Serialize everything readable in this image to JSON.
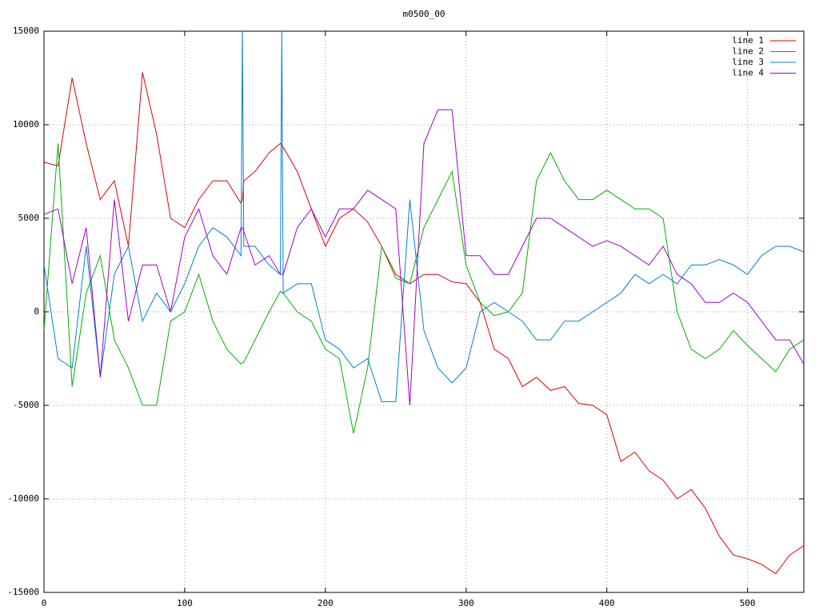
{
  "chart_data": {
    "type": "line",
    "title": "m0500_00",
    "x": [
      0,
      10,
      20,
      30,
      40,
      50,
      60,
      70,
      80,
      90,
      100,
      110,
      120,
      130,
      140,
      141,
      142,
      150,
      160,
      168,
      169,
      170,
      180,
      190,
      200,
      210,
      220,
      230,
      240,
      250,
      260,
      270,
      280,
      290,
      300,
      310,
      320,
      330,
      340,
      350,
      360,
      370,
      380,
      390,
      400,
      410,
      420,
      430,
      440,
      450,
      460,
      470,
      480,
      490,
      500,
      510,
      520,
      530,
      540
    ],
    "series": [
      {
        "name": "line 1",
        "color": "#e00000",
        "values": [
          8000,
          7800,
          12500,
          9000,
          6000,
          7000,
          3500,
          12800,
          9500,
          5000,
          4500,
          6000,
          7000,
          7000,
          5800,
          6000,
          7000,
          7500,
          8500,
          9000,
          8900,
          8800,
          7500,
          5500,
          3500,
          5000,
          5500,
          4800,
          3500,
          2000,
          1500,
          2000,
          2000,
          1600,
          1500,
          500,
          -2000,
          -2500,
          -4000,
          -3500,
          -4200,
          -4000,
          -4900,
          -5000,
          -5500,
          -8000,
          -7500,
          -8500,
          -9000,
          -10000,
          -9500,
          -10500,
          -12000,
          -13000,
          -13200,
          -13500,
          -14000,
          -13000,
          -12500
        ]
      },
      {
        "name": "line 2",
        "color": "#00b000",
        "values": [
          -1000,
          9000,
          -4000,
          1000,
          3000,
          -1500,
          -3000,
          -5000,
          -5000,
          -500,
          0,
          2000,
          -500,
          -2000,
          -2800,
          -2700,
          -2700,
          -1500,
          0,
          1100,
          1000,
          1000,
          0,
          -500,
          -2000,
          -2500,
          -6500,
          -3000,
          3500,
          1800,
          1500,
          4500,
          6000,
          7500,
          2500,
          500,
          -200,
          0,
          1000,
          7000,
          8500,
          7000,
          6000,
          6000,
          6500,
          6000,
          5500,
          5500,
          5000,
          0,
          -2000,
          -2500,
          -2000,
          -1000,
          -1800,
          -2500,
          -3200,
          -2000,
          -1500
        ]
      },
      {
        "name": "line 3",
        "color": "#0080d0",
        "values": [
          2500,
          -2500,
          -3000,
          3500,
          -3500,
          2000,
          3500,
          -500,
          1000,
          0,
          1500,
          3500,
          4500,
          4000,
          3000,
          15000,
          3500,
          3500,
          2500,
          2000,
          15000,
          1000,
          1500,
          1500,
          -1500,
          -2000,
          -3000,
          -2500,
          -4800,
          -4800,
          6000,
          -1000,
          -3000,
          -3800,
          -3000,
          0,
          500,
          0,
          -500,
          -1500,
          -1500,
          -500,
          -500,
          0,
          500,
          1000,
          2000,
          1500,
          2000,
          1500,
          2500,
          2500,
          2800,
          2500,
          2000,
          3000,
          3500,
          3500,
          3200
        ]
      },
      {
        "name": "line 4",
        "color": "#a000d0",
        "values": [
          5200,
          5500,
          1500,
          4500,
          -3500,
          6000,
          -500,
          2500,
          2500,
          0,
          4000,
          5500,
          3000,
          2000,
          4500,
          4500,
          4300,
          2500,
          3000,
          2000,
          2000,
          2000,
          4500,
          5500,
          4000,
          5500,
          5500,
          6500,
          6000,
          5500,
          -5000,
          9000,
          10800,
          10800,
          3000,
          3000,
          2000,
          2000,
          3500,
          5000,
          5000,
          4500,
          4000,
          3500,
          3800,
          3500,
          3000,
          2500,
          3500,
          2000,
          1500,
          500,
          500,
          1000,
          500,
          -500,
          -1500,
          -1500,
          -2800
        ]
      }
    ],
    "xlim": [
      0,
      540
    ],
    "xticks": [
      0,
      100,
      200,
      300,
      400,
      500
    ],
    "ylim": [
      -15000,
      15000
    ],
    "yticks": [
      -15000,
      -10000,
      -5000,
      0,
      5000,
      10000,
      15000
    ],
    "grid": true,
    "legend": "top right"
  }
}
